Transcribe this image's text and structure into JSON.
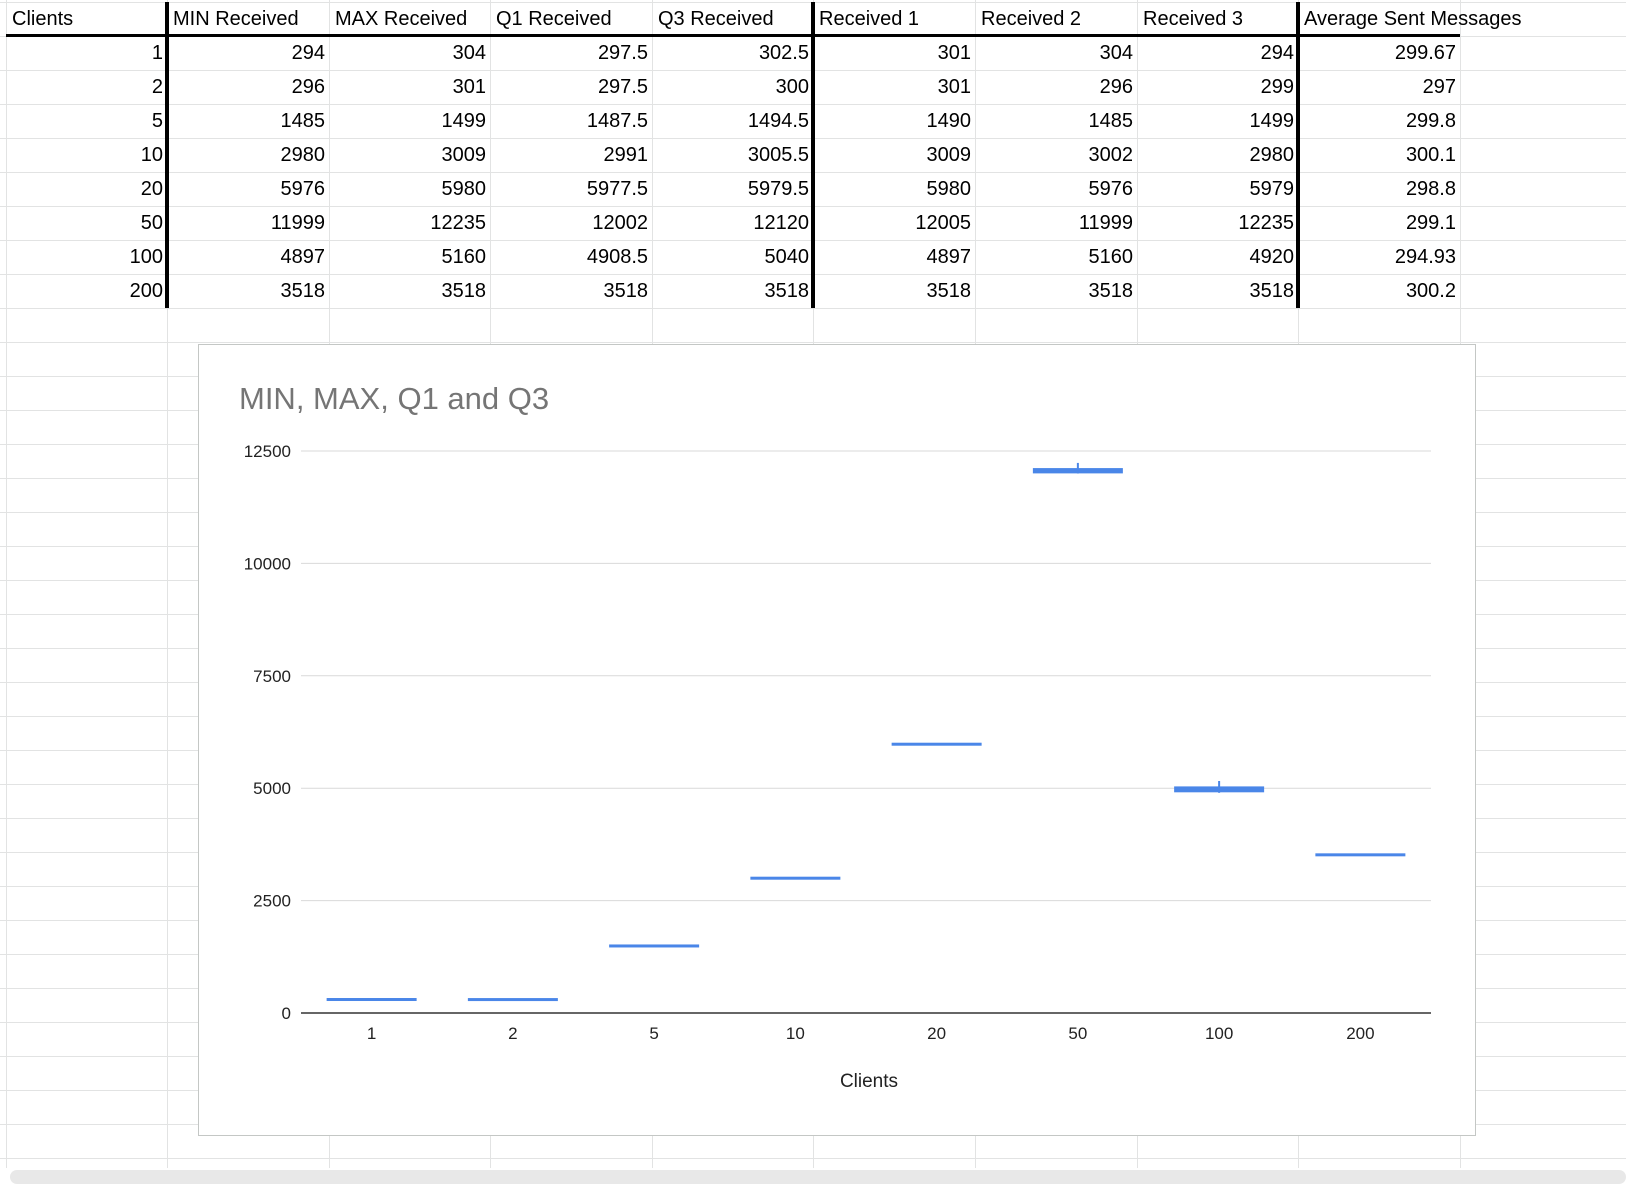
{
  "table": {
    "headers": [
      "Clients",
      "MIN Received",
      "MAX Received",
      "Q1 Received",
      "Q3 Received",
      "Received 1",
      "Received 2",
      "Received 3",
      "Average Sent Messages"
    ],
    "rows": [
      [
        "1",
        "294",
        "304",
        "297.5",
        "302.5",
        "301",
        "304",
        "294",
        "299.67"
      ],
      [
        "2",
        "296",
        "301",
        "297.5",
        "300",
        "301",
        "296",
        "299",
        "297"
      ],
      [
        "5",
        "1485",
        "1499",
        "1487.5",
        "1494.5",
        "1490",
        "1485",
        "1499",
        "299.8"
      ],
      [
        "10",
        "2980",
        "3009",
        "2991",
        "3005.5",
        "3009",
        "3002",
        "2980",
        "300.1"
      ],
      [
        "20",
        "5976",
        "5980",
        "5977.5",
        "5979.5",
        "5980",
        "5976",
        "5979",
        "298.8"
      ],
      [
        "50",
        "11999",
        "12235",
        "12002",
        "12120",
        "12005",
        "11999",
        "12235",
        "299.1"
      ],
      [
        "100",
        "4897",
        "5160",
        "4908.5",
        "5040",
        "4897",
        "5160",
        "4920",
        "294.93"
      ],
      [
        "200",
        "3518",
        "3518",
        "3518",
        "3518",
        "3518",
        "3518",
        "3518",
        "300.2"
      ]
    ]
  },
  "chart_data": {
    "type": "candlestick",
    "title": "MIN, MAX, Q1 and Q3",
    "xlabel": "Clients",
    "ylabel": "",
    "categories": [
      "1",
      "2",
      "5",
      "10",
      "20",
      "50",
      "100",
      "200"
    ],
    "min": [
      294,
      296,
      1485,
      2980,
      5976,
      11999,
      4897,
      3518
    ],
    "max": [
      304,
      301,
      1499,
      3009,
      5980,
      12235,
      5160,
      3518
    ],
    "q1": [
      297.5,
      297.5,
      1487.5,
      2991,
      5977.5,
      12002,
      4908.5,
      3518
    ],
    "q3": [
      302.5,
      300,
      1494.5,
      3005.5,
      5979.5,
      12120,
      5040,
      3518
    ],
    "yticks": [
      0,
      2500,
      5000,
      7500,
      10000,
      12500
    ],
    "ylim": [
      0,
      12500
    ],
    "grid": true,
    "legend": "none",
    "color": "#4a86e8"
  }
}
